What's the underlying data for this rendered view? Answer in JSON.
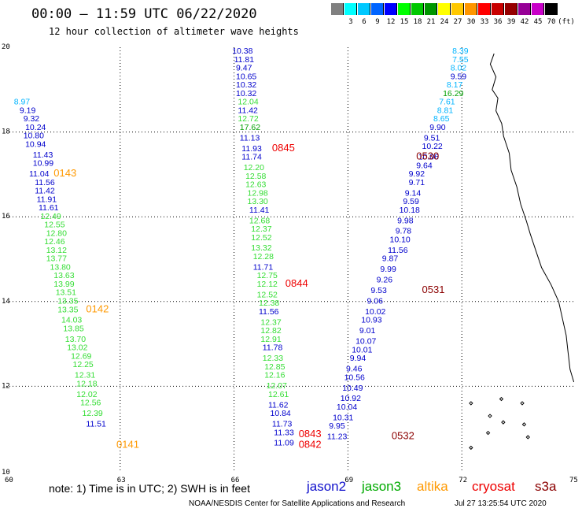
{
  "header": {
    "title": "00:00 – 11:59 UTC 06/22/2020",
    "subtitle": "12 hour collection of altimeter wave heights"
  },
  "legend": {
    "unit": "(ft)",
    "levels": [
      {
        "label": "",
        "color": "#808080"
      },
      {
        "label": "3",
        "color": "#00ffff"
      },
      {
        "label": "6",
        "color": "#00c8ff"
      },
      {
        "label": "9",
        "color": "#0064ff"
      },
      {
        "label": "12",
        "color": "#0000ff"
      },
      {
        "label": "15",
        "color": "#00ff00"
      },
      {
        "label": "18",
        "color": "#00c800"
      },
      {
        "label": "21",
        "color": "#009600"
      },
      {
        "label": "24",
        "color": "#ffff00"
      },
      {
        "label": "27",
        "color": "#ffc800"
      },
      {
        "label": "30",
        "color": "#ff9600"
      },
      {
        "label": "33",
        "color": "#ff0000"
      },
      {
        "label": "36",
        "color": "#c80000"
      },
      {
        "label": "39",
        "color": "#960000"
      },
      {
        "label": "42",
        "color": "#960096"
      },
      {
        "label": "45",
        "color": "#c800c8"
      },
      {
        "label": "70",
        "color": "#000000"
      }
    ]
  },
  "map": {
    "lon_ticks": [
      "60",
      "63",
      "66",
      "69",
      "72",
      "75"
    ],
    "lat_ticks": [
      "20",
      "18",
      "16",
      "14",
      "12",
      "10"
    ],
    "lon_range": [
      60,
      75
    ],
    "lat_range": [
      10,
      20
    ]
  },
  "colors": {
    "cyan": "#00b4ff",
    "blue": "#0000cc",
    "green": "#33dd33",
    "darkgreen": "#00a000",
    "orange": "#ff9900",
    "red": "#ee0000",
    "darkred": "#8b0000"
  },
  "tracks": [
    {
      "color": "cyan",
      "points": [
        {
          "lon": 60.2,
          "lat": 18.65,
          "v": "8.97"
        }
      ]
    },
    {
      "color": "blue",
      "points": [
        {
          "lon": 60.35,
          "lat": 18.45,
          "v": "9.19"
        },
        {
          "lon": 60.45,
          "lat": 18.25,
          "v": "9.32"
        },
        {
          "lon": 60.5,
          "lat": 18.05,
          "v": "10.24"
        },
        {
          "lon": 60.45,
          "lat": 17.85,
          "v": "10.80"
        },
        {
          "lon": 60.5,
          "lat": 17.65,
          "v": "10.94"
        },
        {
          "lon": 60.7,
          "lat": 17.4,
          "v": "11.43"
        },
        {
          "lon": 60.7,
          "lat": 17.2,
          "v": "10.99"
        },
        {
          "lon": 60.6,
          "lat": 16.95,
          "v": "11.04"
        },
        {
          "lon": 60.75,
          "lat": 16.75,
          "v": "11.56"
        },
        {
          "lon": 60.75,
          "lat": 16.55,
          "v": "11.42"
        },
        {
          "lon": 60.8,
          "lat": 16.35,
          "v": "11.91"
        },
        {
          "lon": 60.85,
          "lat": 16.15,
          "v": "11.61"
        }
      ]
    },
    {
      "color": "green",
      "points": [
        {
          "lon": 60.9,
          "lat": 15.95,
          "v": "12.49"
        },
        {
          "lon": 61.0,
          "lat": 15.75,
          "v": "12.55"
        },
        {
          "lon": 61.05,
          "lat": 15.55,
          "v": "12.80"
        },
        {
          "lon": 61.0,
          "lat": 15.35,
          "v": "12.46"
        },
        {
          "lon": 61.05,
          "lat": 15.15,
          "v": "13.12"
        },
        {
          "lon": 61.05,
          "lat": 14.95,
          "v": "13.77"
        },
        {
          "lon": 61.15,
          "lat": 14.75,
          "v": "13.80"
        },
        {
          "lon": 61.25,
          "lat": 14.55,
          "v": "13.63"
        },
        {
          "lon": 61.25,
          "lat": 14.35,
          "v": "13.99"
        },
        {
          "lon": 61.3,
          "lat": 14.15,
          "v": "13.51"
        },
        {
          "lon": 61.35,
          "lat": 13.95,
          "v": "13.35"
        },
        {
          "lon": 61.35,
          "lat": 13.75,
          "v": "13.35"
        },
        {
          "lon": 61.45,
          "lat": 13.5,
          "v": "14.03"
        },
        {
          "lon": 61.5,
          "lat": 13.3,
          "v": "13.85"
        },
        {
          "lon": 61.55,
          "lat": 13.05,
          "v": "13.70"
        },
        {
          "lon": 61.6,
          "lat": 12.85,
          "v": "13.02"
        },
        {
          "lon": 61.7,
          "lat": 12.65,
          "v": "12.69"
        },
        {
          "lon": 61.75,
          "lat": 12.45,
          "v": "12.25"
        },
        {
          "lon": 61.8,
          "lat": 12.2,
          "v": "12.31"
        },
        {
          "lon": 61.85,
          "lat": 12.0,
          "v": "12.18"
        },
        {
          "lon": 61.85,
          "lat": 11.75,
          "v": "12.02"
        },
        {
          "lon": 61.95,
          "lat": 11.55,
          "v": "12.56"
        },
        {
          "lon": 62.0,
          "lat": 11.3,
          "v": "12.39"
        }
      ]
    },
    {
      "color": "blue",
      "points": [
        {
          "lon": 62.1,
          "lat": 11.05,
          "v": "11.51"
        }
      ]
    },
    {
      "color": "blue",
      "points": [
        {
          "lon": 65.95,
          "lat": 19.85,
          "v": "10.38"
        },
        {
          "lon": 66.0,
          "lat": 19.65,
          "v": "11.81"
        },
        {
          "lon": 66.05,
          "lat": 19.45,
          "v": "9.47"
        },
        {
          "lon": 66.05,
          "lat": 19.25,
          "v": "10.65"
        },
        {
          "lon": 66.05,
          "lat": 19.05,
          "v": "10.32"
        },
        {
          "lon": 66.05,
          "lat": 18.85,
          "v": "10.32"
        }
      ]
    },
    {
      "color": "green",
      "points": [
        {
          "lon": 66.1,
          "lat": 18.65,
          "v": "12.04"
        }
      ]
    },
    {
      "color": "blue",
      "points": [
        {
          "lon": 66.1,
          "lat": 18.45,
          "v": "11.42"
        }
      ]
    },
    {
      "color": "green",
      "points": [
        {
          "lon": 66.1,
          "lat": 18.25,
          "v": "12.72"
        }
      ]
    },
    {
      "color": "darkgreen",
      "points": [
        {
          "lon": 66.15,
          "lat": 18.05,
          "v": "17.62"
        }
      ]
    },
    {
      "color": "blue",
      "points": [
        {
          "lon": 66.15,
          "lat": 17.8,
          "v": "11.13"
        },
        {
          "lon": 66.2,
          "lat": 17.55,
          "v": "11.93"
        },
        {
          "lon": 66.2,
          "lat": 17.35,
          "v": "11.74"
        }
      ]
    },
    {
      "color": "green",
      "points": [
        {
          "lon": 66.25,
          "lat": 17.1,
          "v": "12.20"
        },
        {
          "lon": 66.3,
          "lat": 16.9,
          "v": "12.58"
        },
        {
          "lon": 66.3,
          "lat": 16.7,
          "v": "12.63"
        },
        {
          "lon": 66.35,
          "lat": 16.5,
          "v": "12.98"
        },
        {
          "lon": 66.35,
          "lat": 16.3,
          "v": "13.30"
        }
      ]
    },
    {
      "color": "blue",
      "points": [
        {
          "lon": 66.4,
          "lat": 16.1,
          "v": "11.41"
        }
      ]
    },
    {
      "color": "green",
      "points": [
        {
          "lon": 66.4,
          "lat": 15.85,
          "v": "12.68"
        },
        {
          "lon": 66.45,
          "lat": 15.65,
          "v": "12.37"
        },
        {
          "lon": 66.45,
          "lat": 15.45,
          "v": "12.52"
        },
        {
          "lon": 66.45,
          "lat": 15.2,
          "v": "13.32"
        },
        {
          "lon": 66.5,
          "lat": 15.0,
          "v": "12.28"
        }
      ]
    },
    {
      "color": "blue",
      "points": [
        {
          "lon": 66.5,
          "lat": 14.75,
          "v": "11.71"
        }
      ]
    },
    {
      "color": "green",
      "points": [
        {
          "lon": 66.6,
          "lat": 14.55,
          "v": "12.75"
        },
        {
          "lon": 66.6,
          "lat": 14.35,
          "v": "12.12"
        },
        {
          "lon": 66.6,
          "lat": 14.1,
          "v": "12.52"
        },
        {
          "lon": 66.65,
          "lat": 13.9,
          "v": "12.38"
        }
      ]
    },
    {
      "color": "blue",
      "points": [
        {
          "lon": 66.65,
          "lat": 13.7,
          "v": "11.56"
        }
      ]
    },
    {
      "color": "green",
      "points": [
        {
          "lon": 66.7,
          "lat": 13.45,
          "v": "12.37"
        },
        {
          "lon": 66.7,
          "lat": 13.25,
          "v": "12.82"
        },
        {
          "lon": 66.7,
          "lat": 13.05,
          "v": "12.91"
        }
      ]
    },
    {
      "color": "blue",
      "points": [
        {
          "lon": 66.75,
          "lat": 12.85,
          "v": "11.78"
        }
      ]
    },
    {
      "color": "green",
      "points": [
        {
          "lon": 66.75,
          "lat": 12.6,
          "v": "12.33"
        },
        {
          "lon": 66.8,
          "lat": 12.4,
          "v": "12.85"
        },
        {
          "lon": 66.8,
          "lat": 12.2,
          "v": "12.16"
        },
        {
          "lon": 66.85,
          "lat": 11.95,
          "v": "12.07"
        },
        {
          "lon": 66.9,
          "lat": 11.75,
          "v": "12.61"
        }
      ]
    },
    {
      "color": "blue",
      "points": [
        {
          "lon": 66.9,
          "lat": 11.5,
          "v": "11.62"
        },
        {
          "lon": 66.95,
          "lat": 11.3,
          "v": "10.84"
        },
        {
          "lon": 67.0,
          "lat": 11.05,
          "v": "11.73"
        },
        {
          "lon": 67.05,
          "lat": 10.85,
          "v": "11.33"
        },
        {
          "lon": 67.05,
          "lat": 10.6,
          "v": "11.09"
        }
      ]
    },
    {
      "color": "cyan",
      "points": [
        {
          "lon": 71.75,
          "lat": 19.85,
          "v": "8.39"
        },
        {
          "lon": 71.75,
          "lat": 19.65,
          "v": "7.55"
        },
        {
          "lon": 71.7,
          "lat": 19.45,
          "v": "8.02"
        }
      ]
    },
    {
      "color": "blue",
      "points": [
        {
          "lon": 71.7,
          "lat": 19.25,
          "v": "9.59"
        }
      ]
    },
    {
      "color": "cyan",
      "points": [
        {
          "lon": 71.6,
          "lat": 19.05,
          "v": "8.17"
        }
      ]
    },
    {
      "color": "darkgreen",
      "points": [
        {
          "lon": 71.5,
          "lat": 18.85,
          "v": "16.29"
        }
      ]
    },
    {
      "color": "cyan",
      "points": [
        {
          "lon": 71.4,
          "lat": 18.65,
          "v": "7.61"
        },
        {
          "lon": 71.35,
          "lat": 18.45,
          "v": "8.81"
        },
        {
          "lon": 71.25,
          "lat": 18.25,
          "v": "8.65"
        }
      ]
    },
    {
      "color": "blue",
      "points": [
        {
          "lon": 71.15,
          "lat": 18.05,
          "v": "9.90"
        },
        {
          "lon": 71.0,
          "lat": 17.8,
          "v": "9.51"
        },
        {
          "lon": 70.95,
          "lat": 17.6,
          "v": "10.22"
        },
        {
          "lon": 70.85,
          "lat": 17.35,
          "v": "10.06"
        },
        {
          "lon": 70.8,
          "lat": 17.15,
          "v": "9.64"
        },
        {
          "lon": 70.6,
          "lat": 16.95,
          "v": "9.92"
        },
        {
          "lon": 70.6,
          "lat": 16.75,
          "v": "9.71"
        },
        {
          "lon": 70.5,
          "lat": 16.5,
          "v": "9.14"
        },
        {
          "lon": 70.45,
          "lat": 16.3,
          "v": "9.59"
        },
        {
          "lon": 70.35,
          "lat": 16.1,
          "v": "10.18"
        },
        {
          "lon": 70.3,
          "lat": 15.85,
          "v": "9.98"
        },
        {
          "lon": 70.25,
          "lat": 15.6,
          "v": "9.78"
        },
        {
          "lon": 70.1,
          "lat": 15.4,
          "v": "10.10"
        },
        {
          "lon": 70.05,
          "lat": 15.15,
          "v": "11.56"
        },
        {
          "lon": 69.9,
          "lat": 14.95,
          "v": "9.87"
        },
        {
          "lon": 69.85,
          "lat": 14.7,
          "v": "9.99"
        },
        {
          "lon": 69.75,
          "lat": 14.45,
          "v": "9.26"
        },
        {
          "lon": 69.6,
          "lat": 14.2,
          "v": "9.53"
        },
        {
          "lon": 69.5,
          "lat": 13.95,
          "v": "9.06"
        },
        {
          "lon": 69.45,
          "lat": 13.7,
          "v": "10.02"
        },
        {
          "lon": 69.35,
          "lat": 13.5,
          "v": "10.93"
        },
        {
          "lon": 69.3,
          "lat": 13.25,
          "v": "9.01"
        },
        {
          "lon": 69.2,
          "lat": 13.0,
          "v": "10.07"
        },
        {
          "lon": 69.1,
          "lat": 12.8,
          "v": "10.01"
        },
        {
          "lon": 69.05,
          "lat": 12.6,
          "v": "9.94"
        },
        {
          "lon": 68.95,
          "lat": 12.35,
          "v": "9.46"
        },
        {
          "lon": 68.9,
          "lat": 12.15,
          "v": "10.56"
        },
        {
          "lon": 68.85,
          "lat": 11.9,
          "v": "10.49"
        },
        {
          "lon": 68.8,
          "lat": 11.65,
          "v": "10.92"
        },
        {
          "lon": 68.7,
          "lat": 11.45,
          "v": "10.04"
        },
        {
          "lon": 68.6,
          "lat": 11.2,
          "v": "10.31"
        },
        {
          "lon": 68.5,
          "lat": 11.0,
          "v": "9.95"
        },
        {
          "lon": 68.45,
          "lat": 10.75,
          "v": "11.23"
        }
      ]
    }
  ],
  "passes": [
    {
      "lon": 61.25,
      "lat": 16.95,
      "v": "0143",
      "color": "orange"
    },
    {
      "lon": 62.1,
      "lat": 13.75,
      "v": "0142",
      "color": "orange"
    },
    {
      "lon": 62.9,
      "lat": 10.55,
      "v": "0141",
      "color": "orange"
    },
    {
      "lon": 67.0,
      "lat": 17.55,
      "v": "0845",
      "color": "red"
    },
    {
      "lon": 67.35,
      "lat": 14.35,
      "v": "0844",
      "color": "red"
    },
    {
      "lon": 67.7,
      "lat": 10.8,
      "v": "0843",
      "color": "red"
    },
    {
      "lon": 67.7,
      "lat": 10.55,
      "v": "0842",
      "color": "red"
    },
    {
      "lon": 70.8,
      "lat": 17.35,
      "v": "0530",
      "color": "darkred"
    },
    {
      "lon": 70.95,
      "lat": 14.2,
      "v": "0531",
      "color": "darkred"
    },
    {
      "lon": 70.15,
      "lat": 10.75,
      "v": "0532",
      "color": "darkred"
    }
  ],
  "footer": {
    "note": "note: 1) Time is in UTC; 2) SWH is in feet",
    "satellites": [
      {
        "name": "jason2",
        "color": "#1010cc"
      },
      {
        "name": "jason3",
        "color": "#00aa00"
      },
      {
        "name": "altika",
        "color": "#ff9900"
      },
      {
        "name": "cryosat",
        "color": "#ee0000"
      },
      {
        "name": "s3a",
        "color": "#8b0000"
      }
    ],
    "credit": "NOAA/NESDIS Center for Satellite Applications and Research",
    "timestamp": "Jul 27 13:25:54 UTC 2020"
  }
}
